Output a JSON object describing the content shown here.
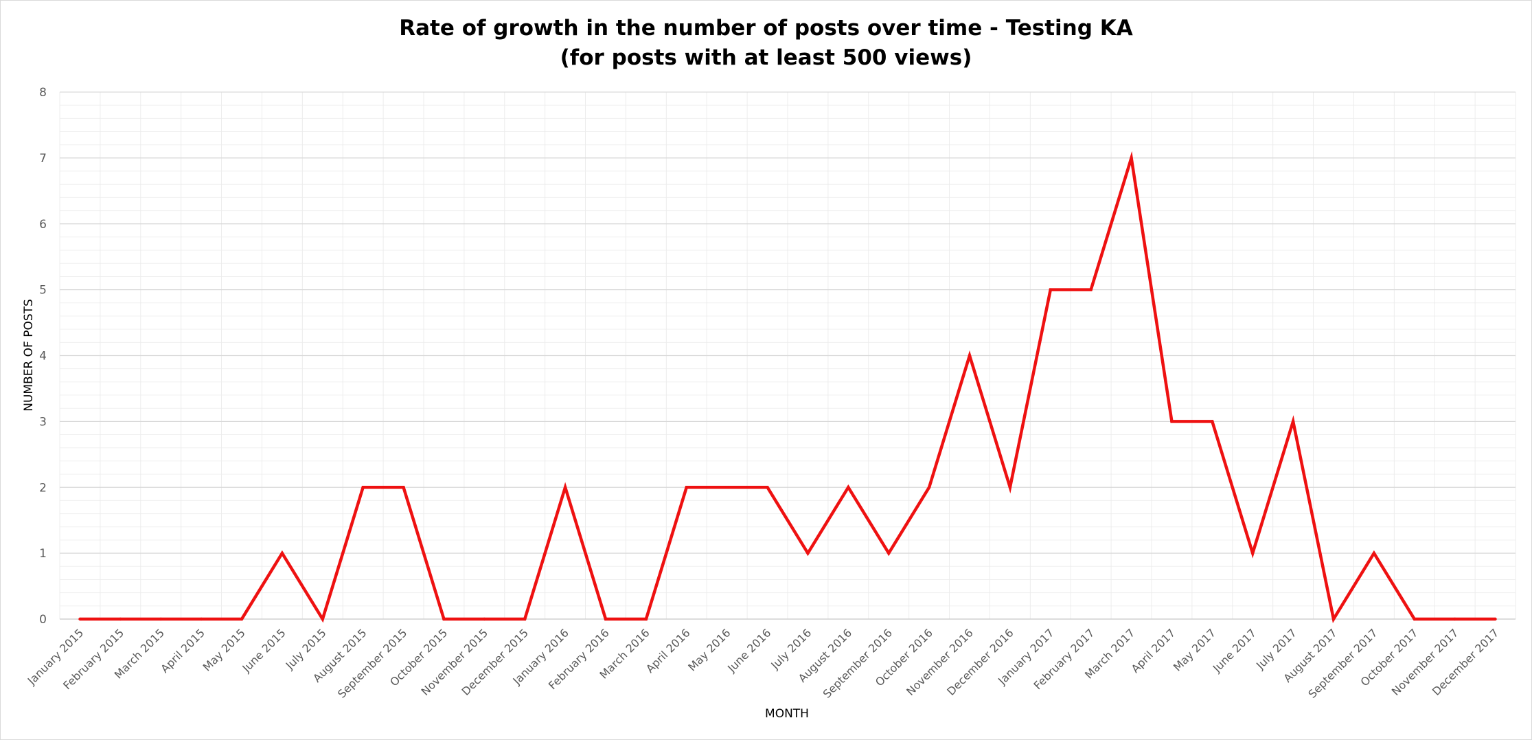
{
  "chart_data": {
    "type": "line",
    "title": "Rate of growth in the number of posts over time - Testing KA",
    "subtitle": "(for posts with at least 500 views)",
    "xlabel": "MONTH",
    "ylabel": "NUMBER OF POSTS",
    "ylim": [
      0,
      8
    ],
    "yticks": [
      "0",
      "1",
      "2",
      "3",
      "4",
      "5",
      "6",
      "7",
      "8"
    ],
    "grid": true,
    "legend": "none",
    "series_color": "#ee1111",
    "categories": [
      "January 2015",
      "February 2015",
      "March 2015",
      "April 2015",
      "May 2015",
      "June 2015",
      "July 2015",
      "August 2015",
      "September 2015",
      "October 2015",
      "November 2015",
      "December 2015",
      "January 2016",
      "February 2016",
      "March 2016",
      "April 2016",
      "May 2016",
      "June 2016",
      "July 2016",
      "August 2016",
      "September 2016",
      "October 2016",
      "November 2016",
      "December 2016",
      "January 2017",
      "February 2017",
      "March 2017",
      "April 2017",
      "May 2017",
      "June 2017",
      "July 2017",
      "August 2017",
      "September 2017",
      "October 2017",
      "November 2017",
      "December 2017"
    ],
    "values": [
      0,
      0,
      0,
      0,
      0,
      1,
      0,
      2,
      2,
      0,
      0,
      0,
      2,
      0,
      0,
      2,
      2,
      2,
      1,
      2,
      1,
      2,
      4,
      2,
      5,
      5,
      7,
      3,
      3,
      1,
      3,
      0,
      1,
      0,
      0,
      0
    ]
  }
}
